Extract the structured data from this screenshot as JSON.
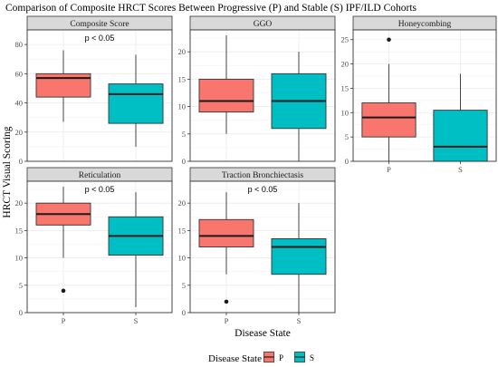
{
  "title": "Comparison of Composite HRCT Scores Between Progressive (P) and Stable (S) IPF/ILD Cohorts",
  "ylabel": "HRCT Visual Scoring",
  "xlabel": "Disease State",
  "legend": {
    "title": "Disease State",
    "items": [
      {
        "label": "P",
        "color": "#F8766D"
      },
      {
        "label": "S",
        "color": "#00BFC4"
      }
    ]
  },
  "colors": {
    "P": "#F8766D",
    "S": "#00BFC4",
    "strip": "#D9D9D9"
  },
  "chart_data": [
    {
      "type": "box",
      "title": "Composite Score",
      "annotation": "p < 0.05",
      "categories": [
        "P",
        "S"
      ],
      "ylim": [
        0,
        90
      ],
      "yticks": [
        0,
        20,
        40,
        60,
        80
      ],
      "show_xticks": false,
      "boxes": [
        {
          "name": "P",
          "min": 27,
          "q1": 44,
          "median": 57,
          "q3": 60,
          "max": 76,
          "outliers": []
        },
        {
          "name": "S",
          "min": 10,
          "q1": 26,
          "median": 46,
          "q3": 53,
          "max": 73,
          "outliers": []
        }
      ]
    },
    {
      "type": "box",
      "title": "GGO",
      "annotation": "",
      "categories": [
        "P",
        "S"
      ],
      "ylim": [
        0,
        24
      ],
      "yticks": [
        0,
        5,
        10,
        15,
        20
      ],
      "show_xticks": false,
      "boxes": [
        {
          "name": "P",
          "min": 5,
          "q1": 9,
          "median": 11,
          "q3": 15,
          "max": 23,
          "outliers": []
        },
        {
          "name": "S",
          "min": 0,
          "q1": 6,
          "median": 11,
          "q3": 16,
          "max": 20,
          "outliers": []
        }
      ]
    },
    {
      "type": "box",
      "title": "Honeycombing",
      "annotation": "",
      "categories": [
        "P",
        "S"
      ],
      "ylim": [
        0,
        27
      ],
      "yticks": [
        0,
        5,
        10,
        15,
        20,
        25
      ],
      "show_xticks": true,
      "boxes": [
        {
          "name": "P",
          "min": 0,
          "q1": 5,
          "median": 9,
          "q3": 12,
          "max": 20,
          "outliers": [
            25
          ]
        },
        {
          "name": "S",
          "min": 0,
          "q1": 0,
          "median": 3,
          "q3": 10.5,
          "max": 18,
          "outliers": []
        }
      ]
    },
    {
      "type": "box",
      "title": "Reticulation",
      "annotation": "p < 0.05",
      "categories": [
        "P",
        "S"
      ],
      "ylim": [
        0,
        24
      ],
      "yticks": [
        0,
        5,
        10,
        15,
        20
      ],
      "show_xticks": true,
      "boxes": [
        {
          "name": "P",
          "min": 10,
          "q1": 16,
          "median": 18,
          "q3": 20,
          "max": 23,
          "outliers": [
            4
          ]
        },
        {
          "name": "S",
          "min": 1,
          "q1": 10.5,
          "median": 14,
          "q3": 17.5,
          "max": 22,
          "outliers": []
        }
      ]
    },
    {
      "type": "box",
      "title": "Traction Bronchiectasis",
      "annotation": "p < 0.05",
      "categories": [
        "P",
        "S"
      ],
      "ylim": [
        0,
        24
      ],
      "yticks": [
        0,
        5,
        10,
        15,
        20
      ],
      "show_xticks": true,
      "boxes": [
        {
          "name": "P",
          "min": 7,
          "q1": 12,
          "median": 14,
          "q3": 17,
          "max": 22,
          "outliers": [
            2
          ]
        },
        {
          "name": "S",
          "min": 0,
          "q1": 7,
          "median": 12,
          "q3": 13.5,
          "max": 20,
          "outliers": []
        }
      ]
    }
  ]
}
